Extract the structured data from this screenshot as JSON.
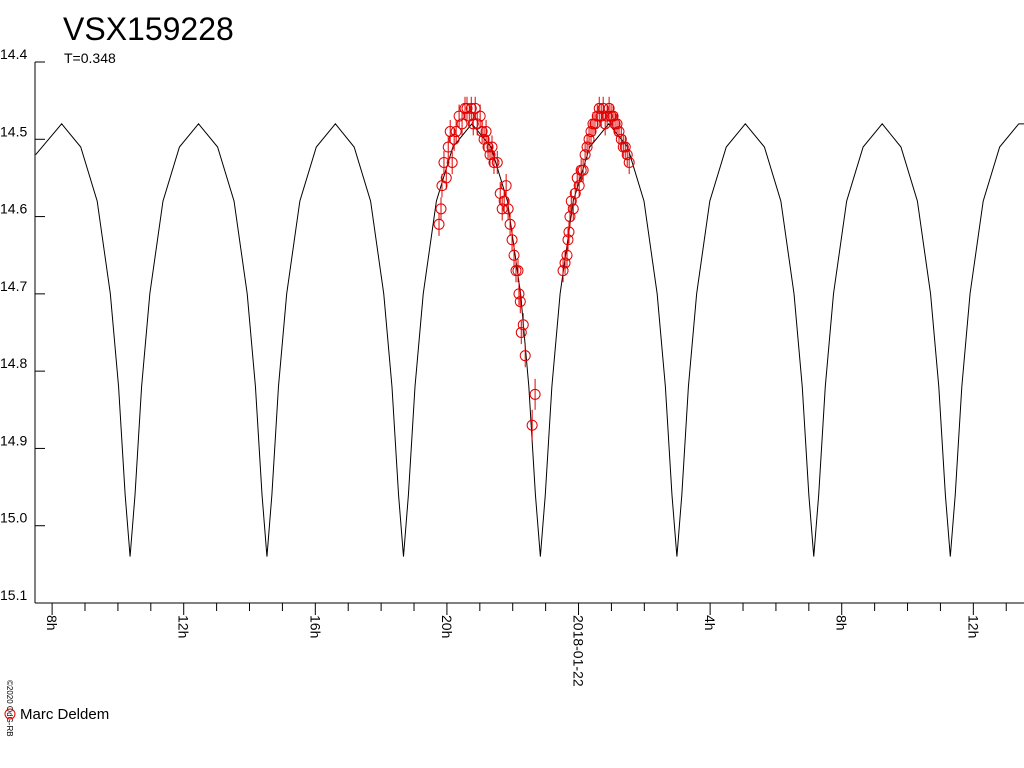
{
  "chart_data": {
    "type": "lightcurve",
    "title": "VSX159228",
    "subtitle": "T=0.348",
    "credit": "©2020 OdG-RB",
    "xlim": [
      7.48,
      37.54
    ],
    "xticks": [
      {
        "value": 8,
        "label": "8h"
      },
      {
        "value": 12,
        "label": "12h"
      },
      {
        "value": 16,
        "label": "16h"
      },
      {
        "value": 20,
        "label": "20h"
      },
      {
        "value": 24,
        "label": "2018-01-22"
      },
      {
        "value": 28,
        "label": "4h"
      },
      {
        "value": 32,
        "label": "8h"
      },
      {
        "value": 36,
        "label": "12h"
      }
    ],
    "xminorticks": [
      9,
      10,
      11,
      13,
      14,
      15,
      17,
      18,
      19,
      21,
      22,
      23,
      25,
      26,
      27,
      29,
      30,
      31,
      33,
      34,
      35,
      37
    ],
    "ylim": [
      14.4,
      15.1
    ],
    "yinvert": true,
    "yticks": [
      14.4,
      14.5,
      14.6,
      14.7,
      14.8,
      14.9,
      {
        "value": 15,
        "label": "15.0"
      },
      15.1
    ],
    "series": [
      {
        "style": "line",
        "color": "#000000",
        "x": [
          7.5,
          8.29,
          8.87,
          9.37,
          9.77,
          10.02,
          10.22,
          10.37,
          10.52,
          10.72,
          10.97,
          11.37,
          11.87,
          12.45,
          13.03,
          13.53,
          13.93,
          14.18,
          14.38,
          14.53,
          14.68,
          14.88,
          15.13,
          15.53,
          16.03,
          16.61,
          17.18,
          17.68,
          18.08,
          18.33,
          18.53,
          18.68,
          18.83,
          19.03,
          19.28,
          19.68,
          20.18,
          20.76,
          21.34,
          21.84,
          22.24,
          22.49,
          22.69,
          22.84,
          22.99,
          23.19,
          23.44,
          23.84,
          24.34,
          24.92,
          25.49,
          25.99,
          26.39,
          26.64,
          26.84,
          26.99,
          27.14,
          27.34,
          27.59,
          27.99,
          28.49,
          29.07,
          29.65,
          30.15,
          30.55,
          30.8,
          31.0,
          31.15,
          31.3,
          31.5,
          31.75,
          32.15,
          32.65,
          33.23,
          33.8,
          34.3,
          34.7,
          34.95,
          35.15,
          35.3,
          35.45,
          35.65,
          35.9,
          36.3,
          36.8,
          37.38,
          37.54
        ],
        "values": [
          14.52,
          14.48,
          14.51,
          14.58,
          14.7,
          14.82,
          14.96,
          15.04,
          14.96,
          14.82,
          14.7,
          14.58,
          14.51,
          14.48,
          14.51,
          14.58,
          14.7,
          14.82,
          14.96,
          15.04,
          14.96,
          14.82,
          14.7,
          14.58,
          14.51,
          14.48,
          14.51,
          14.58,
          14.7,
          14.82,
          14.96,
          15.04,
          14.96,
          14.82,
          14.7,
          14.58,
          14.51,
          14.48,
          14.51,
          14.58,
          14.7,
          14.82,
          14.96,
          15.04,
          14.96,
          14.82,
          14.7,
          14.58,
          14.51,
          14.48,
          14.51,
          14.58,
          14.7,
          14.82,
          14.96,
          15.04,
          14.96,
          14.82,
          14.7,
          14.58,
          14.51,
          14.48,
          14.51,
          14.58,
          14.7,
          14.82,
          14.96,
          15.04,
          14.96,
          14.82,
          14.7,
          14.58,
          14.51,
          14.48,
          14.51,
          14.58,
          14.7,
          14.82,
          14.96,
          15.04,
          14.96,
          14.82,
          14.7,
          14.58,
          14.51,
          14.48,
          14.48
        ]
      },
      {
        "name": "Marc Deldem",
        "style": "points",
        "color": "#e00000",
        "x": [
          19.76,
          19.82,
          19.85,
          19.91,
          19.98,
          20.04,
          20.1,
          20.16,
          20.22,
          20.28,
          20.37,
          20.46,
          20.55,
          20.61,
          20.68,
          20.74,
          20.8,
          20.86,
          20.92,
          21.01,
          21.07,
          21.13,
          21.19,
          21.25,
          21.31,
          21.37,
          21.43,
          21.53,
          21.62,
          21.68,
          21.74,
          21.8,
          21.86,
          21.92,
          21.98,
          22.04,
          22.1,
          22.16,
          22.19,
          22.23,
          22.26,
          22.32,
          22.38,
          22.68,
          22.59,
          23.53,
          23.59,
          23.65,
          23.68,
          23.71,
          23.74,
          23.78,
          23.84,
          23.9,
          23.96,
          24.02,
          24.08,
          24.14,
          24.2,
          24.26,
          24.32,
          24.38,
          24.44,
          24.5,
          24.57,
          24.63,
          24.69,
          24.75,
          24.81,
          24.87,
          24.93,
          24.99,
          25.05,
          25.11,
          25.17,
          25.23,
          25.3,
          25.36,
          25.42,
          25.48,
          25.54
        ],
        "values": [
          14.61,
          14.59,
          14.56,
          14.53,
          14.55,
          14.51,
          14.49,
          14.53,
          14.5,
          14.49,
          14.47,
          14.48,
          14.46,
          14.46,
          14.47,
          14.46,
          14.48,
          14.46,
          14.48,
          14.47,
          14.49,
          14.5,
          14.49,
          14.51,
          14.52,
          14.51,
          14.53,
          14.53,
          14.57,
          14.59,
          14.58,
          14.56,
          14.59,
          14.61,
          14.63,
          14.65,
          14.67,
          14.67,
          14.7,
          14.71,
          14.75,
          14.74,
          14.78,
          14.83,
          14.87,
          14.67,
          14.66,
          14.65,
          14.63,
          14.62,
          14.6,
          14.58,
          14.59,
          14.57,
          14.55,
          14.56,
          14.54,
          14.54,
          14.52,
          14.51,
          14.5,
          14.49,
          14.48,
          14.48,
          14.47,
          14.46,
          14.47,
          14.46,
          14.48,
          14.47,
          14.46,
          14.47,
          14.47,
          14.48,
          14.48,
          14.49,
          14.5,
          14.51,
          14.51,
          14.52,
          14.53
        ],
        "errors": [
          0.015,
          0.015,
          0.015,
          0.015,
          0.015,
          0.015,
          0.015,
          0.015,
          0.015,
          0.015,
          0.015,
          0.015,
          0.015,
          0.015,
          0.015,
          0.015,
          0.015,
          0.015,
          0.015,
          0.015,
          0.015,
          0.015,
          0.015,
          0.015,
          0.015,
          0.015,
          0.015,
          0.015,
          0.015,
          0.015,
          0.015,
          0.015,
          0.015,
          0.015,
          0.015,
          0.015,
          0.015,
          0.015,
          0.015,
          0.015,
          0.015,
          0.015,
          0.015,
          0.02,
          0.02,
          0.015,
          0.015,
          0.015,
          0.015,
          0.015,
          0.015,
          0.015,
          0.015,
          0.015,
          0.015,
          0.015,
          0.015,
          0.015,
          0.015,
          0.015,
          0.015,
          0.015,
          0.015,
          0.015,
          0.015,
          0.015,
          0.015,
          0.015,
          0.015,
          0.015,
          0.015,
          0.015,
          0.015,
          0.015,
          0.015,
          0.015,
          0.015,
          0.015,
          0.015,
          0.015,
          0.015
        ]
      }
    ]
  }
}
